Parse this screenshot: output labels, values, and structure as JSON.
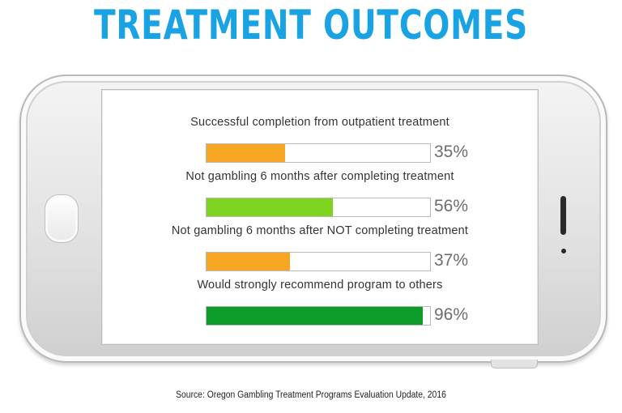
{
  "title": "TREATMENT OUTCOMES",
  "source": "Source:  Oregon Gambling Treatment Programs Evaluation Update, 2016",
  "colors": {
    "title": "#1aa3e3",
    "orange": "#f6a623",
    "light_green": "#7ed321",
    "dark_green": "#0d9b2a"
  },
  "chart_data": {
    "type": "bar",
    "orientation": "horizontal",
    "title": "TREATMENT OUTCOMES",
    "categories": [
      "Successful  completion from outpatient treatment",
      "Not gambling 6 months after completing treatment",
      "Not gambling 6 months after NOT completing treatment",
      "Would strongly recommend program to others"
    ],
    "values": [
      35,
      56,
      37,
      96
    ],
    "value_labels": [
      "35%",
      "56%",
      "37%",
      "96%"
    ],
    "bar_colors": [
      "#f6a623",
      "#7ed321",
      "#f6a623",
      "#0d9b2a"
    ],
    "xlim": [
      0,
      100
    ],
    "unit": "%",
    "grid": false,
    "legend": "none"
  }
}
